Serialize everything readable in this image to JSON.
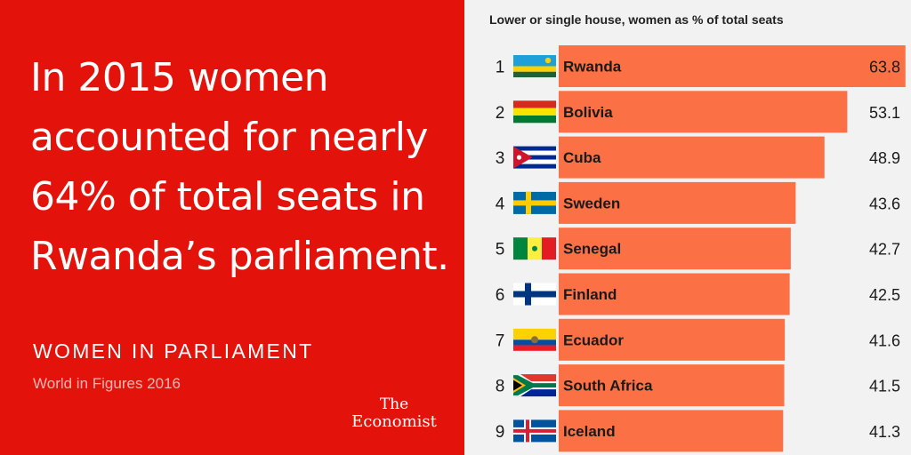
{
  "headline": {
    "line1": "In 2015 women",
    "line2": "accounted for nearly",
    "line3": "64% of total seats in",
    "line4": "Rwanda’s parliament."
  },
  "section": {
    "title": "WOMEN IN PARLIAMENT",
    "subtitle": "World in Figures 2016"
  },
  "logo": {
    "line1": "The",
    "line2": "Economist"
  },
  "colors": {
    "brand_red": "#e3120b",
    "bar": "#fb7145",
    "background": "#f2f2f2"
  },
  "chart_data": {
    "type": "bar",
    "orientation": "horizontal",
    "title": "Lower or single house, women as % of total seats",
    "xlabel": "",
    "ylabel": "",
    "xlim": [
      0,
      64
    ],
    "categories": [
      "Rwanda",
      "Bolivia",
      "Cuba",
      "Sweden",
      "Senegal",
      "Finland",
      "Ecuador",
      "South Africa",
      "Iceland"
    ],
    "ranks": [
      "1",
      "2",
      "3",
      "4",
      "5",
      "6",
      "7",
      "8",
      "9"
    ],
    "values": [
      63.8,
      53.1,
      48.9,
      43.6,
      42.7,
      42.5,
      41.6,
      41.5,
      41.3
    ],
    "value_labels": [
      "63.8",
      "53.1",
      "48.9",
      "43.6",
      "42.7",
      "42.5",
      "41.6",
      "41.5",
      "41.3"
    ],
    "flag_icons": [
      "rwanda-flag-icon",
      "bolivia-flag-icon",
      "cuba-flag-icon",
      "sweden-flag-icon",
      "senegal-flag-icon",
      "finland-flag-icon",
      "ecuador-flag-icon",
      "south-africa-flag-icon",
      "iceland-flag-icon"
    ]
  }
}
